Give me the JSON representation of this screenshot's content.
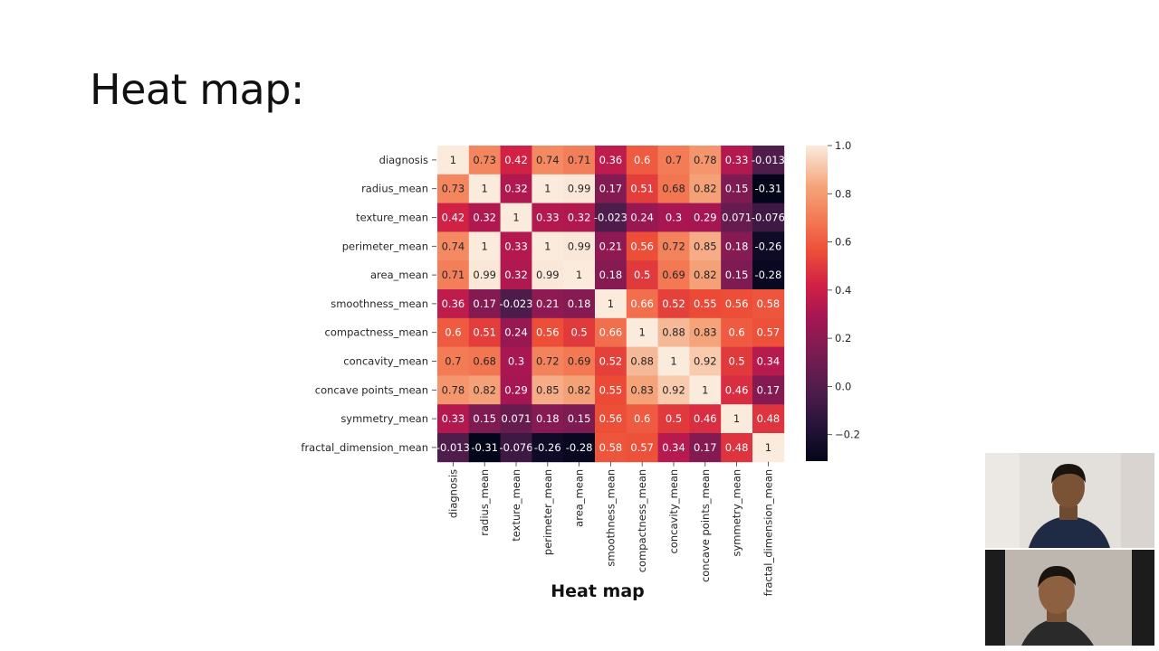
{
  "slide": {
    "title": "Heat map:",
    "caption": "Heat map"
  },
  "colors": {
    "background": "#ffffff",
    "text": "#111111"
  },
  "participants": [
    {
      "name": "participant-top",
      "background": "#e2ded9",
      "shirt": "#1f2a44",
      "skin": "#7a5236",
      "hair": "#1a1410"
    },
    {
      "name": "participant-bottom",
      "background": "#1c1c1c",
      "shirt": "#2a2a2a",
      "skin": "#8d6042",
      "hair": "#1a1410"
    }
  ],
  "chart_data": {
    "type": "heatmap",
    "rows": [
      "diagnosis",
      "radius_mean",
      "texture_mean",
      "perimeter_mean",
      "area_mean",
      "smoothness_mean",
      "compactness_mean",
      "concavity_mean",
      "concave points_mean",
      "symmetry_mean",
      "fractal_dimension_mean"
    ],
    "columns": [
      "diagnosis",
      "radius_mean",
      "texture_mean",
      "perimeter_mean",
      "area_mean",
      "smoothness_mean",
      "compactness_mean",
      "concavity_mean",
      "concave points_mean",
      "symmetry_mean",
      "fractal_dimension_mean"
    ],
    "labels": [
      [
        "1",
        "0.73",
        "0.42",
        "0.74",
        "0.71",
        "0.36",
        "0.6",
        "0.7",
        "0.78",
        "0.33",
        "-0.013"
      ],
      [
        "0.73",
        "1",
        "0.32",
        "1",
        "0.99",
        "0.17",
        "0.51",
        "0.68",
        "0.82",
        "0.15",
        "-0.31"
      ],
      [
        "0.42",
        "0.32",
        "1",
        "0.33",
        "0.32",
        "-0.023",
        "0.24",
        "0.3",
        "0.29",
        "0.071",
        "-0.076"
      ],
      [
        "0.74",
        "1",
        "0.33",
        "1",
        "0.99",
        "0.21",
        "0.56",
        "0.72",
        "0.85",
        "0.18",
        "-0.26"
      ],
      [
        "0.71",
        "0.99",
        "0.32",
        "0.99",
        "1",
        "0.18",
        "0.5",
        "0.69",
        "0.82",
        "0.15",
        "-0.28"
      ],
      [
        "0.36",
        "0.17",
        "-0.023",
        "0.21",
        "0.18",
        "1",
        "0.66",
        "0.52",
        "0.55",
        "0.56",
        "0.58"
      ],
      [
        "0.6",
        "0.51",
        "0.24",
        "0.56",
        "0.5",
        "0.66",
        "1",
        "0.88",
        "0.83",
        "0.6",
        "0.57"
      ],
      [
        "0.7",
        "0.68",
        "0.3",
        "0.72",
        "0.69",
        "0.52",
        "0.88",
        "1",
        "0.92",
        "0.5",
        "0.34"
      ],
      [
        "0.78",
        "0.82",
        "0.29",
        "0.85",
        "0.82",
        "0.55",
        "0.83",
        "0.92",
        "1",
        "0.46",
        "0.17"
      ],
      [
        "0.33",
        "0.15",
        "0.071",
        "0.18",
        "0.15",
        "0.56",
        "0.6",
        "0.5",
        "0.46",
        "1",
        "0.48"
      ],
      [
        "-0.013",
        "-0.31",
        "-0.076",
        "-0.26",
        "-0.28",
        "0.58",
        "0.57",
        "0.34",
        "0.17",
        "0.48",
        "1"
      ]
    ],
    "colorbar": {
      "min": -0.31,
      "max": 1.0,
      "ticks": [
        "1.0",
        "0.8",
        "0.6",
        "0.4",
        "0.2",
        "0.0",
        "−0.2"
      ],
      "tick_values": [
        1.0,
        0.8,
        0.6,
        0.4,
        0.2,
        0.0,
        -0.2
      ]
    },
    "colormap": "rocket"
  }
}
